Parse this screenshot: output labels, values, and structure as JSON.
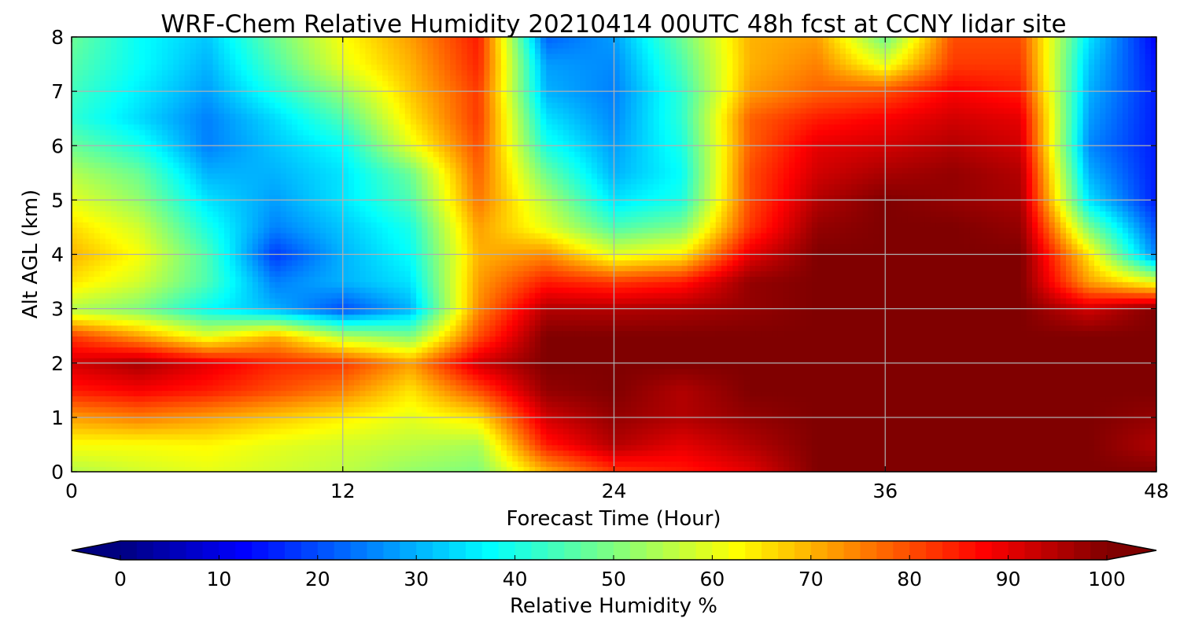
{
  "chart_data": {
    "type": "heatmap",
    "title": "WRF-Chem Relative Humidity 20210414 00UTC 48h fcst at CCNY lidar site",
    "xlabel": "Forecast Time (Hour)",
    "ylabel": "Alt AGL (km)",
    "xlim": [
      0,
      48
    ],
    "ylim": [
      0,
      8
    ],
    "x_ticks": [
      "0",
      "12",
      "24",
      "36",
      "48"
    ],
    "y_ticks": [
      "0",
      "1",
      "2",
      "3",
      "4",
      "5",
      "6",
      "7",
      "8"
    ],
    "grid": true,
    "x": [
      0,
      3,
      6,
      9,
      12,
      15,
      18,
      21,
      24,
      27,
      30,
      33,
      36,
      39,
      42,
      45,
      48
    ],
    "y": [
      0,
      0.5,
      1,
      1.5,
      2,
      2.5,
      3,
      3.5,
      4,
      4.5,
      5,
      5.5,
      6,
      6.5,
      7,
      7.5,
      8
    ],
    "z": [
      [
        55,
        58,
        60,
        58,
        56,
        52,
        50,
        70,
        82,
        85,
        90,
        100,
        100,
        100,
        100,
        100,
        100
      ],
      [
        62,
        62,
        63,
        60,
        58,
        56,
        54,
        85,
        95,
        90,
        95,
        100,
        100,
        100,
        100,
        100,
        95
      ],
      [
        72,
        75,
        72,
        68,
        64,
        60,
        65,
        92,
        98,
        95,
        98,
        100,
        100,
        100,
        100,
        100,
        98
      ],
      [
        85,
        88,
        85,
        80,
        75,
        65,
        80,
        98,
        100,
        95,
        100,
        100,
        100,
        100,
        100,
        100,
        100
      ],
      [
        92,
        96,
        90,
        84,
        82,
        72,
        92,
        100,
        100,
        100,
        100,
        100,
        100,
        100,
        100,
        100,
        100
      ],
      [
        82,
        72,
        60,
        70,
        55,
        50,
        80,
        100,
        100,
        100,
        100,
        100,
        100,
        100,
        100,
        100,
        100
      ],
      [
        55,
        50,
        38,
        30,
        20,
        30,
        74,
        95,
        95,
        96,
        98,
        100,
        100,
        100,
        100,
        92,
        100
      ],
      [
        65,
        58,
        45,
        25,
        30,
        35,
        72,
        85,
        82,
        85,
        98,
        100,
        100,
        100,
        100,
        72,
        60
      ],
      [
        70,
        62,
        45,
        18,
        30,
        38,
        70,
        74,
        60,
        64,
        90,
        100,
        100,
        100,
        100,
        65,
        25
      ],
      [
        66,
        58,
        40,
        25,
        32,
        40,
        72,
        60,
        45,
        50,
        82,
        98,
        100,
        100,
        98,
        50,
        20
      ],
      [
        60,
        52,
        35,
        28,
        35,
        45,
        76,
        55,
        35,
        40,
        80,
        95,
        100,
        98,
        96,
        35,
        15
      ],
      [
        55,
        48,
        30,
        30,
        35,
        48,
        78,
        48,
        30,
        38,
        80,
        92,
        96,
        98,
        95,
        30,
        15
      ],
      [
        48,
        40,
        25,
        32,
        38,
        60,
        80,
        40,
        28,
        40,
        78,
        90,
        92,
        95,
        92,
        26,
        15
      ],
      [
        42,
        34,
        25,
        34,
        45,
        65,
        82,
        35,
        26,
        42,
        78,
        85,
        88,
        92,
        90,
        28,
        15
      ],
      [
        44,
        36,
        28,
        40,
        52,
        68,
        82,
        30,
        25,
        42,
        72,
        78,
        80,
        88,
        85,
        30,
        15
      ],
      [
        46,
        38,
        30,
        45,
        60,
        70,
        84,
        28,
        26,
        45,
        70,
        75,
        60,
        82,
        82,
        32,
        14
      ],
      [
        48,
        38,
        32,
        48,
        62,
        72,
        85,
        22,
        28,
        48,
        70,
        72,
        48,
        80,
        80,
        35,
        12
      ]
    ],
    "colorbar": {
      "label": "Relative Humidity %",
      "ticks": [
        "0",
        "10",
        "20",
        "30",
        "40",
        "50",
        "60",
        "70",
        "80",
        "90",
        "100"
      ],
      "range": [
        0,
        100
      ],
      "extend": "both",
      "colormap": "jet"
    }
  }
}
